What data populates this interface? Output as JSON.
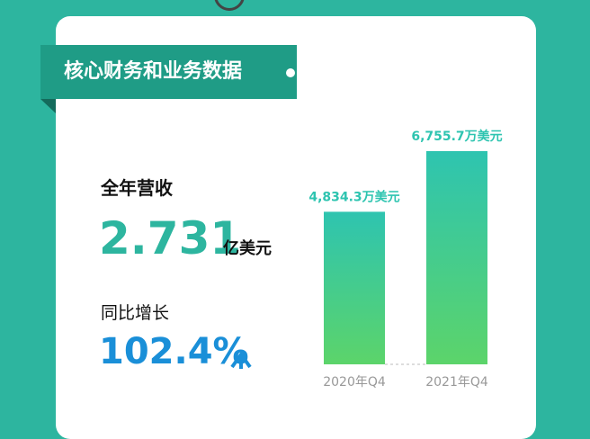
{
  "header": {
    "title": "核心财务和业务数据"
  },
  "stats": {
    "revenue_label": "全年营收",
    "revenue_value": "2.731",
    "revenue_unit": "亿美元",
    "growth_label": "同比增长",
    "growth_value": "102.4%"
  },
  "chart_data": {
    "type": "bar",
    "categories": [
      "2020年Q4",
      "2021年Q4"
    ],
    "values": [
      4834.3,
      6755.7
    ],
    "value_labels": [
      "4,834.3万美元",
      "6,755.7万美元"
    ],
    "color": "#2ec4b0"
  }
}
